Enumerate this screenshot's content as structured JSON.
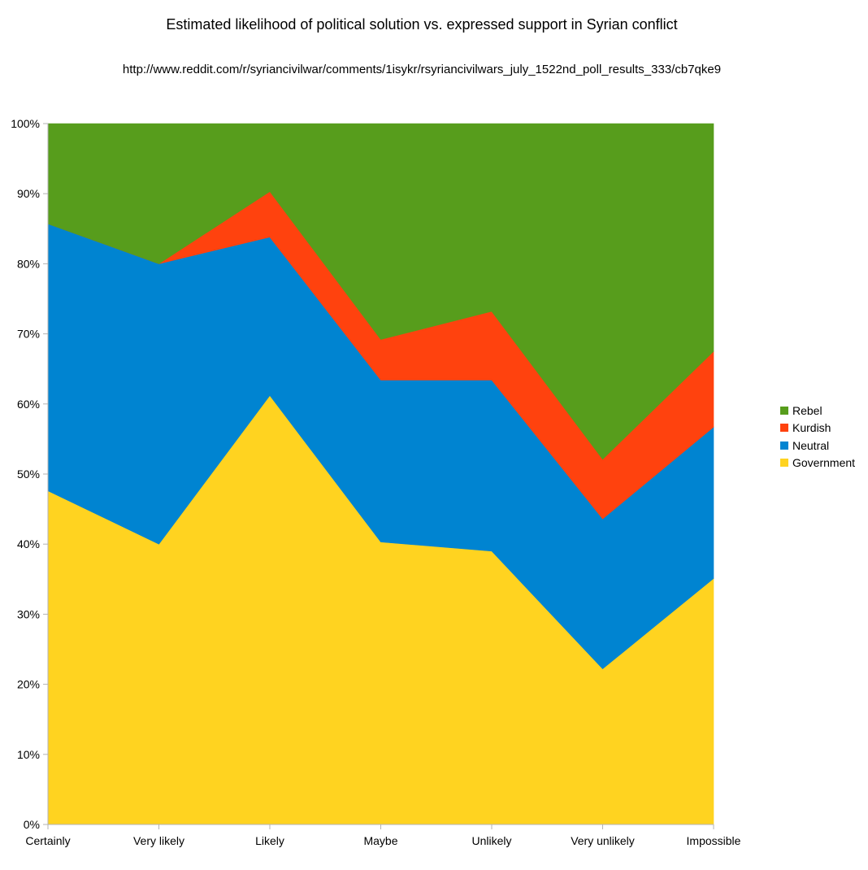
{
  "chart_data": {
    "type": "area",
    "stacked": true,
    "title": "Estimated likelihood of political solution vs. expressed support in Syrian conflict",
    "subtitle": "http://www.reddit.com/r/syriancivilwar/comments/1isykr/rsyriancivilwars_july_1522nd_poll_results_333/cb7qke9",
    "categories": [
      "Certainly",
      "Very likely",
      "Likely",
      "Maybe",
      "Unlikely",
      "Very unlikely",
      "Impossible"
    ],
    "yticks": [
      "0%",
      "10%",
      "20%",
      "30%",
      "40%",
      "50%",
      "60%",
      "70%",
      "80%",
      "90%",
      "100%"
    ],
    "ylim": [
      0,
      100
    ],
    "unit": "%",
    "legend_position": "right",
    "series": [
      {
        "name": "Government",
        "color": "#ffd320",
        "values": [
          47.6,
          40.0,
          61.2,
          40.3,
          39.0,
          22.2,
          35.1
        ]
      },
      {
        "name": "Neutral",
        "color": "#0084d1",
        "values": [
          38.1,
          40.0,
          22.6,
          23.1,
          24.4,
          21.4,
          21.6
        ]
      },
      {
        "name": "Kurdish",
        "color": "#ff420e",
        "values": [
          0.0,
          0.0,
          6.5,
          5.8,
          9.8,
          8.5,
          10.8
        ]
      },
      {
        "name": "Rebel",
        "color": "#579d1c",
        "values": [
          14.3,
          20.0,
          9.7,
          30.8,
          26.8,
          47.9,
          32.5
        ]
      }
    ]
  }
}
